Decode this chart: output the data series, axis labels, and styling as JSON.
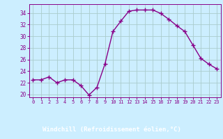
{
  "x": [
    0,
    1,
    2,
    3,
    4,
    5,
    6,
    7,
    8,
    9,
    10,
    11,
    12,
    13,
    14,
    15,
    16,
    17,
    18,
    19,
    20,
    21,
    22,
    23
  ],
  "y": [
    22.5,
    22.5,
    23.0,
    22.0,
    22.5,
    22.5,
    21.5,
    19.9,
    21.2,
    25.2,
    30.8,
    32.6,
    34.3,
    34.5,
    34.5,
    34.5,
    33.9,
    32.9,
    31.8,
    30.8,
    28.5,
    26.2,
    25.2,
    24.4
  ],
  "line_color": "#880088",
  "marker": "+",
  "marker_size": 4,
  "background_color": "#cceeff",
  "grid_color": "#aacccc",
  "xlabel": "Windchill (Refroidissement éolien,°C)",
  "xlabel_color": "#880088",
  "tick_color": "#880088",
  "spine_color": "#880088",
  "bottom_bar_color": "#7700aa",
  "ylim": [
    19.5,
    35.5
  ],
  "yticks": [
    20,
    22,
    24,
    26,
    28,
    30,
    32,
    34
  ],
  "xlim": [
    -0.5,
    23.5
  ],
  "xticks": [
    0,
    1,
    2,
    3,
    4,
    5,
    6,
    7,
    8,
    9,
    10,
    11,
    12,
    13,
    14,
    15,
    16,
    17,
    18,
    19,
    20,
    21,
    22,
    23
  ]
}
